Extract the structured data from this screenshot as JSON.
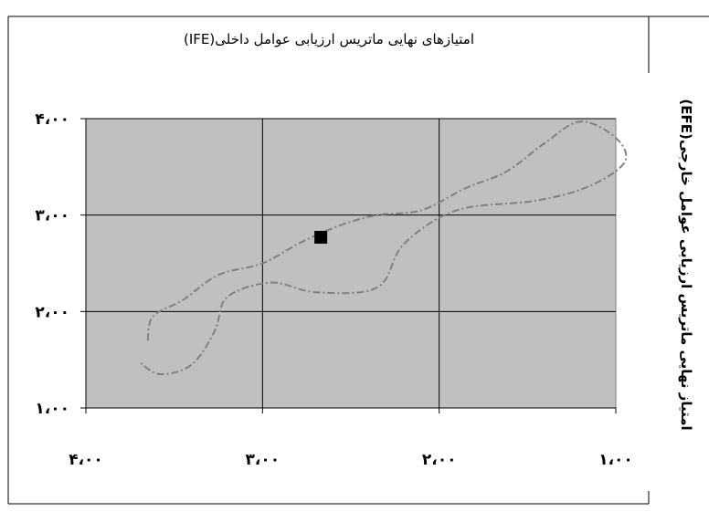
{
  "chart_data": {
    "type": "scatter",
    "title": "امتیازهای نهایی ماتریس ارزیابی عوامل داخلی(IFE)",
    "xlabel": "",
    "ylabel": "امتیاز نهایی ماتریس ارزیابی عوامل خارجی(EFE)",
    "xlim": [
      1,
      4
    ],
    "x_reversed": true,
    "ylim": [
      1,
      4
    ],
    "x_ticks": [
      4,
      3,
      2,
      1
    ],
    "x_tick_labels": [
      "۴،۰۰",
      "۳،۰۰",
      "۲،۰۰",
      "۱،۰۰"
    ],
    "y_ticks": [
      4,
      3,
      2,
      1
    ],
    "y_tick_labels": [
      "۴،۰۰",
      "۳،۰۰",
      "۲،۰۰",
      "۱،۰۰"
    ],
    "grid": true,
    "plot_background": "#c0c0c0",
    "points": [
      {
        "x": 2.67,
        "y": 2.77,
        "marker": "square",
        "color": "#000000"
      }
    ],
    "dashed_outline": {
      "color": "#808080",
      "points": [
        [
          3.65,
          1.7
        ],
        [
          3.62,
          1.95
        ],
        [
          3.45,
          2.12
        ],
        [
          3.25,
          2.38
        ],
        [
          3.0,
          2.5
        ],
        [
          2.78,
          2.72
        ],
        [
          2.55,
          2.9
        ],
        [
          2.35,
          3.0
        ],
        [
          2.1,
          3.05
        ],
        [
          1.85,
          3.28
        ],
        [
          1.62,
          3.45
        ],
        [
          1.4,
          3.75
        ],
        [
          1.2,
          3.97
        ],
        [
          1.0,
          3.8
        ],
        [
          0.95,
          3.55
        ],
        [
          1.15,
          3.3
        ],
        [
          1.45,
          3.15
        ],
        [
          1.9,
          3.05
        ],
        [
          2.2,
          2.7
        ],
        [
          2.35,
          2.25
        ],
        [
          2.7,
          2.2
        ],
        [
          2.95,
          2.3
        ],
        [
          3.2,
          2.15
        ],
        [
          3.27,
          1.8
        ],
        [
          3.4,
          1.45
        ],
        [
          3.58,
          1.35
        ],
        [
          3.7,
          1.48
        ]
      ]
    }
  }
}
